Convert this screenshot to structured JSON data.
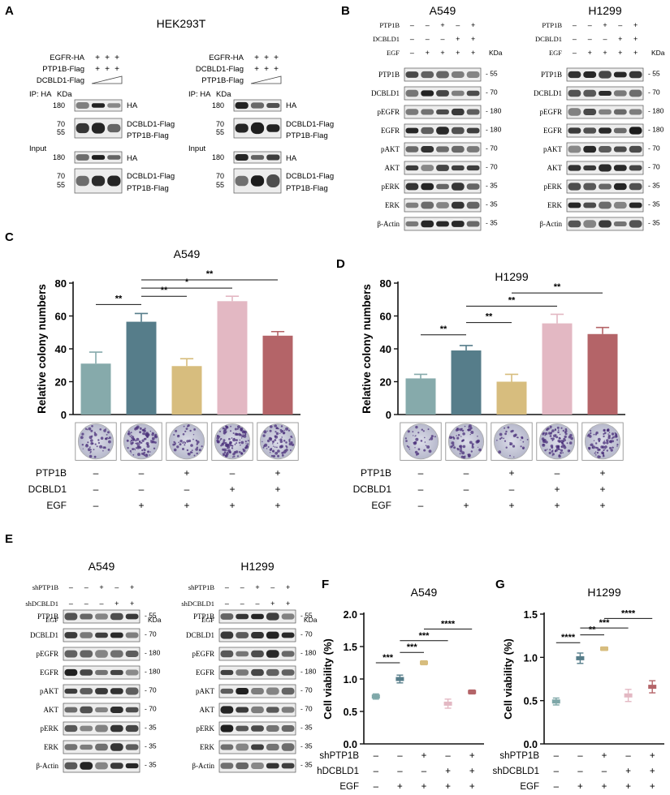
{
  "panels": {
    "A": {
      "letter": "A",
      "cell_line": "HEK293T",
      "left": {
        "rows": [
          "EGFR-HA",
          "PTP1B-Flag",
          "DCBLD1-Flag"
        ],
        "ip": "IP: HA",
        "kda_header": "KDa",
        "input": "Input",
        "ip_markers": [
          "180",
          "70",
          "55"
        ],
        "input_markers": [
          "180",
          "70",
          "55"
        ],
        "bands_ip": [
          "HA",
          "DCBLD1-Flag",
          "PTP1B-Flag"
        ],
        "bands_input": [
          "HA",
          "DCBLD1-Flag",
          "PTP1B-Flag"
        ]
      },
      "right": {
        "rows": [
          "EGFR-HA",
          "DCBLD1-Flag",
          "PTP1B-Flag"
        ],
        "ip": "IP: HA",
        "kda_header": "KDa",
        "input": "Input",
        "ip_markers": [
          "180",
          "70",
          "55"
        ],
        "input_markers": [
          "180",
          "70",
          "55"
        ],
        "bands_ip": [
          "HA",
          "DCBLD1-Flag",
          "PTP1B-Flag"
        ],
        "bands_input": [
          "HA",
          "DCBLD1-Flag",
          "PTP1B-Flag"
        ]
      }
    },
    "B": {
      "letter": "B",
      "kda_header": "KDa",
      "blots": [
        {
          "title": "A549",
          "conditions": [
            {
              "label": "PTP1B",
              "values": [
                "–",
                "–",
                "+",
                "–",
                "+"
              ]
            },
            {
              "label": "DCBLD1",
              "values": [
                "–",
                "–",
                "–",
                "+",
                "+"
              ]
            },
            {
              "label": "EGF",
              "values": [
                "–",
                "+",
                "+",
                "+",
                "+"
              ]
            }
          ]
        },
        {
          "title": "H1299",
          "conditions": [
            {
              "label": "PTP1B",
              "values": [
                "–",
                "–",
                "+",
                "–",
                "+"
              ]
            },
            {
              "label": "DCBLD1",
              "values": [
                "–",
                "–",
                "–",
                "+",
                "+"
              ]
            },
            {
              "label": "EGF",
              "values": [
                "–",
                "+",
                "+",
                "+",
                "+"
              ]
            }
          ]
        }
      ],
      "proteins": [
        "PTP1B",
        "DCBLD1",
        "pEGFR",
        "EGFR",
        "pAKT",
        "AKT",
        "pERK",
        "ERK",
        "β-Actin"
      ],
      "markers": [
        "55",
        "70",
        "180",
        "180",
        "70",
        "70",
        "35",
        "35",
        "35"
      ]
    },
    "C": {
      "letter": "C",
      "conditions": [
        {
          "label": "PTP1B",
          "values": [
            "–",
            "–",
            "+",
            "–",
            "+"
          ]
        },
        {
          "label": "DCBLD1",
          "values": [
            "–",
            "–",
            "–",
            "+",
            "+"
          ]
        },
        {
          "label": "EGF",
          "values": [
            "–",
            "+",
            "+",
            "+",
            "+"
          ]
        }
      ]
    },
    "D": {
      "letter": "D",
      "conditions": [
        {
          "label": "PTP1B",
          "values": [
            "–",
            "–",
            "+",
            "–",
            "+"
          ]
        },
        {
          "label": "DCBLD1",
          "values": [
            "–",
            "–",
            "–",
            "+",
            "+"
          ]
        },
        {
          "label": "EGF",
          "values": [
            "–",
            "+",
            "+",
            "+",
            "+"
          ]
        }
      ]
    },
    "E": {
      "letter": "E",
      "kda_header": "KDa",
      "blots": [
        {
          "title": "A549",
          "conditions": [
            {
              "label": "shPTP1B",
              "values": [
                "–",
                "–",
                "+",
                "–",
                "+"
              ]
            },
            {
              "label": "shDCBLD1",
              "values": [
                "–",
                "–",
                "–",
                "+",
                "+"
              ]
            },
            {
              "label": "EGF",
              "values": [
                "–",
                "+",
                "+",
                "+",
                "+"
              ]
            }
          ]
        },
        {
          "title": "H1299",
          "conditions": [
            {
              "label": "shPTP1B",
              "values": [
                "–",
                "–",
                "+",
                "–",
                "+"
              ]
            },
            {
              "label": "shDCBLD1",
              "values": [
                "–",
                "–",
                "–",
                "+",
                "+"
              ]
            },
            {
              "label": "EGF",
              "values": [
                "–",
                "+",
                "+",
                "+",
                "+"
              ]
            }
          ]
        }
      ],
      "proteins": [
        "PTP1B",
        "DCBLD1",
        "pEGFR",
        "EGFR",
        "pAKT",
        "AKT",
        "pERK",
        "ERK",
        "β-Actin"
      ],
      "markers": [
        "55",
        "70",
        "180",
        "180",
        "70",
        "70",
        "35",
        "35",
        "35"
      ]
    },
    "F": {
      "letter": "F",
      "conditions": [
        {
          "label": "shPTP1B",
          "values": [
            "–",
            "–",
            "+",
            "–",
            "+"
          ]
        },
        {
          "label": "hDCBLD1",
          "values": [
            "–",
            "–",
            "–",
            "+",
            "+"
          ]
        },
        {
          "label": "EGF",
          "values": [
            "–",
            "+",
            "+",
            "+",
            "+"
          ]
        }
      ]
    },
    "G": {
      "letter": "G",
      "conditions": [
        {
          "label": "shPTP1B",
          "values": [
            "–",
            "–",
            "+",
            "–",
            "+"
          ]
        },
        {
          "label": "shDCBLD1",
          "values": [
            "–",
            "–",
            "–",
            "+",
            "+"
          ]
        },
        {
          "label": "EGF",
          "values": [
            "–",
            "+",
            "+",
            "+",
            "+"
          ]
        }
      ]
    }
  },
  "chart_data": [
    {
      "id": "C",
      "type": "bar",
      "title": "A549",
      "ylabel": "Relative colony numbers",
      "ylim": [
        0,
        80
      ],
      "yticks": [
        0,
        20,
        40,
        60,
        80
      ],
      "values": [
        31,
        56.5,
        29.5,
        69,
        48
      ],
      "errors": [
        7,
        5,
        4.5,
        3,
        2.5
      ],
      "colors": [
        "#86aaab",
        "#567d8a",
        "#d7bd7e",
        "#e3b8c3",
        "#b46468"
      ],
      "significance": [
        {
          "from": 0,
          "to": 1,
          "label": "**",
          "y": 67
        },
        {
          "from": 1,
          "to": 2,
          "label": "**",
          "y": 72
        },
        {
          "from": 1,
          "to": 3,
          "label": "*",
          "y": 77
        },
        {
          "from": 1,
          "to": 4,
          "label": "**",
          "y": 82
        }
      ]
    },
    {
      "id": "D",
      "type": "bar",
      "title": "H1299",
      "ylabel": "Relative colony numbers",
      "ylim": [
        0,
        80
      ],
      "yticks": [
        0,
        20,
        40,
        60,
        80
      ],
      "values": [
        22,
        39,
        20,
        55.5,
        49
      ],
      "errors": [
        2.5,
        3,
        4.5,
        5.5,
        4
      ],
      "colors": [
        "#86aaab",
        "#567d8a",
        "#d7bd7e",
        "#e3b8c3",
        "#b46468"
      ],
      "significance": [
        {
          "from": 0,
          "to": 1,
          "label": "**",
          "y": 48.5
        },
        {
          "from": 1,
          "to": 2,
          "label": "**",
          "y": 56
        },
        {
          "from": 1,
          "to": 3,
          "label": "**",
          "y": 66
        },
        {
          "from": 2,
          "to": 4,
          "label": "**",
          "y": 74
        }
      ]
    },
    {
      "id": "F",
      "type": "scatter",
      "title": "A549",
      "ylabel": "Cell viability (%)",
      "ylim": [
        0,
        2.0
      ],
      "yticks": [
        "0.0",
        "0.5",
        "1.0",
        "1.5",
        "2.0"
      ],
      "values": [
        0.73,
        1.0,
        1.25,
        0.62,
        0.8
      ],
      "errors": [
        0.04,
        0.06,
        0.03,
        0.07,
        0.03
      ],
      "colors": [
        "#7ea7a8",
        "#567d8a",
        "#d7bd7e",
        "#e3b8c3",
        "#b46468"
      ],
      "significance": [
        {
          "from": 0,
          "to": 1,
          "label": "***",
          "y": 1.25
        },
        {
          "from": 1,
          "to": 2,
          "label": "***",
          "y": 1.41
        },
        {
          "from": 1,
          "to": 3,
          "label": "***",
          "y": 1.59
        },
        {
          "from": 2,
          "to": 4,
          "label": "****",
          "y": 1.77
        }
      ]
    },
    {
      "id": "G",
      "type": "scatter",
      "title": "H1299",
      "ylabel": "Cell viability (%)",
      "ylim": [
        0,
        1.5
      ],
      "yticks": [
        "0.0",
        "0.5",
        "1.0",
        "1.5"
      ],
      "values": [
        0.49,
        0.99,
        1.1,
        0.56,
        0.66
      ],
      "errors": [
        0.04,
        0.06,
        0.02,
        0.07,
        0.07
      ],
      "colors": [
        "#7ea7a8",
        "#567d8a",
        "#d7bd7e",
        "#e3b8c3",
        "#b46468"
      ],
      "significance": [
        {
          "from": 0,
          "to": 1,
          "label": "****",
          "y": 1.17
        },
        {
          "from": 1,
          "to": 2,
          "label": "**",
          "y": 1.26
        },
        {
          "from": 1,
          "to": 3,
          "label": "***",
          "y": 1.34
        },
        {
          "from": 2,
          "to": 4,
          "label": "****",
          "y": 1.45
        }
      ]
    }
  ]
}
